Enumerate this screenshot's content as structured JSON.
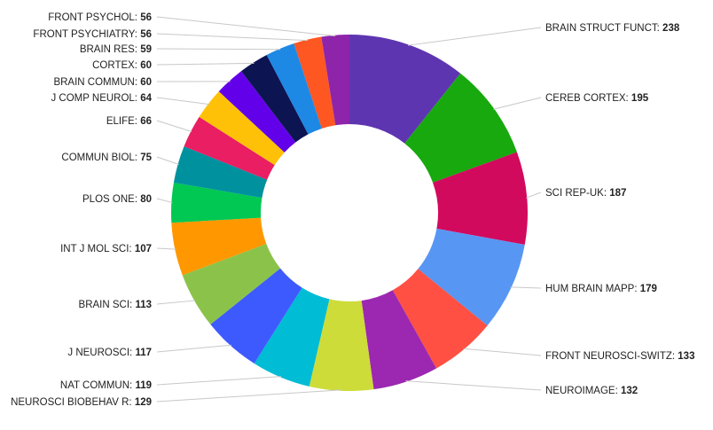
{
  "chart_data": {
    "type": "pie",
    "donut": true,
    "title": "",
    "categories": [
      "BRAIN STRUCT FUNCT",
      "CEREB CORTEX",
      "SCI REP-UK",
      "HUM BRAIN MAPP",
      "FRONT NEUROSCI-SWITZ",
      "NEUROIMAGE",
      "NEUROSCI BIOBEHAV R",
      "NAT COMMUN",
      "J NEUROSCI",
      "BRAIN SCI",
      "INT J MOL SCI",
      "PLOS ONE",
      "COMMUN BIOL",
      "ELIFE",
      "J COMP NEUROL",
      "BRAIN COMMUN",
      "CORTEX",
      "BRAIN RES",
      "FRONT PSYCHIATRY",
      "FRONT PSYCHOL"
    ],
    "values": [
      238,
      195,
      187,
      179,
      133,
      132,
      129,
      119,
      117,
      113,
      107,
      80,
      75,
      66,
      64,
      60,
      60,
      59,
      56,
      56
    ],
    "colors": [
      "#5e35b1",
      "#17a90e",
      "#d20a5e",
      "#5896f3",
      "#ff5043",
      "#9c27b0",
      "#cddc39",
      "#00bcd4",
      "#3d5afe",
      "#8bc34a",
      "#ff9800",
      "#00c853",
      "#00919e",
      "#e91e63",
      "#ffc107",
      "#6200ea",
      "#0d1452",
      "#1e88e5",
      "#ff5722",
      "#8e24aa"
    ]
  }
}
